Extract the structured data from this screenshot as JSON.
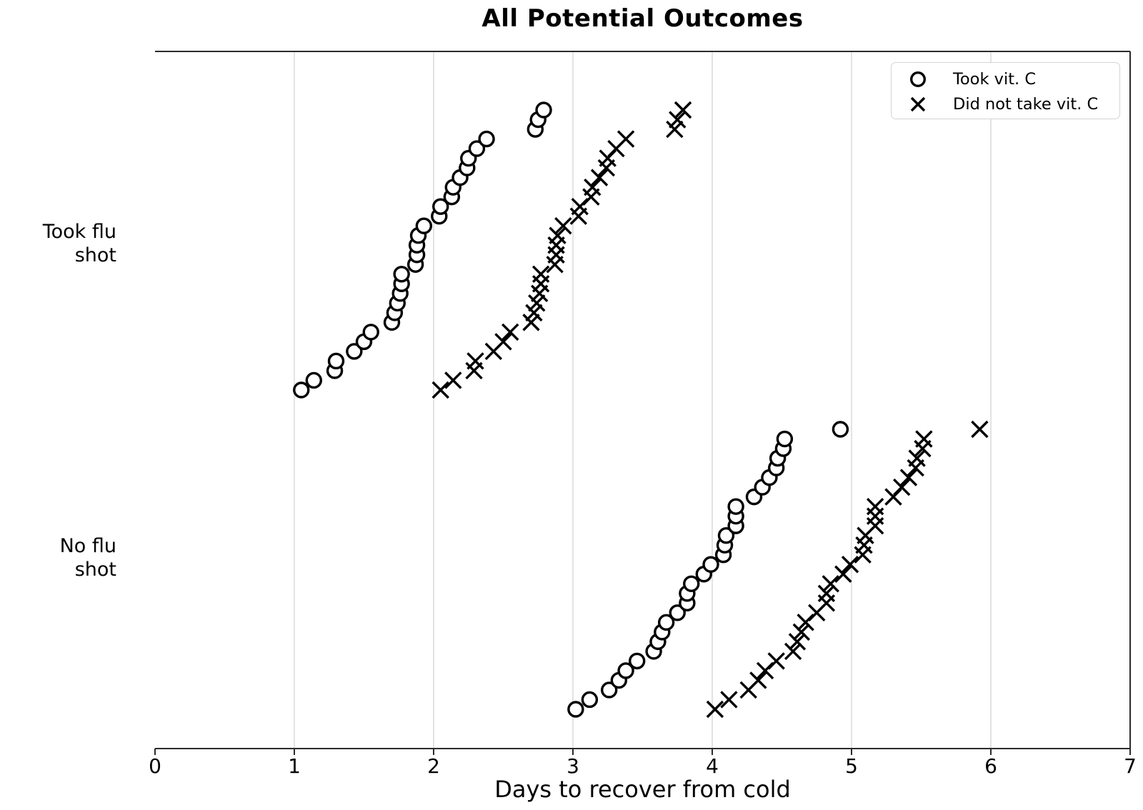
{
  "chart_data": {
    "type": "scatter",
    "title": "All Potential Outcomes",
    "xlabel": "Days to recover from cold",
    "xlim": [
      0,
      7
    ],
    "x_tick_labels": [
      "0",
      "1",
      "2",
      "3",
      "4",
      "5",
      "6",
      "7"
    ],
    "grid": "vertical gridlines at integer days 1-6",
    "legend_position": "upper right",
    "y_categories": [
      {
        "line1": "Took flu",
        "line2": "shot"
      },
      {
        "line1": "No flu",
        "line2": "shot"
      }
    ],
    "legend": {
      "items": [
        {
          "marker": "circle",
          "label": "Took vit. C"
        },
        {
          "marker": "x",
          "label": "Did not take vit. C"
        }
      ]
    },
    "series": [
      {
        "group": "Took flu shot",
        "row": 0,
        "condition": "Took vit. C",
        "marker": "circle",
        "values": [
          1.05,
          1.14,
          1.29,
          1.3,
          1.43,
          1.5,
          1.55,
          1.7,
          1.72,
          1.74,
          1.76,
          1.77,
          1.77,
          1.87,
          1.88,
          1.88,
          1.89,
          1.93,
          2.04,
          2.05,
          2.13,
          2.14,
          2.19,
          2.24,
          2.25,
          2.31,
          2.38,
          2.73,
          2.75,
          2.79
        ]
      },
      {
        "group": "Took flu shot",
        "row": 0,
        "condition": "Did not take vit. C",
        "marker": "x",
        "values": [
          2.05,
          2.14,
          2.29,
          2.3,
          2.43,
          2.5,
          2.55,
          2.7,
          2.72,
          2.74,
          2.76,
          2.77,
          2.77,
          2.87,
          2.88,
          2.88,
          2.89,
          2.93,
          3.04,
          3.05,
          3.13,
          3.14,
          3.19,
          3.24,
          3.25,
          3.31,
          3.38,
          3.73,
          3.75,
          3.79
        ]
      },
      {
        "group": "No flu shot",
        "row": 1,
        "condition": "Took vit. C",
        "marker": "circle",
        "values": [
          3.02,
          3.12,
          3.26,
          3.33,
          3.38,
          3.46,
          3.58,
          3.61,
          3.64,
          3.67,
          3.75,
          3.82,
          3.82,
          3.85,
          3.94,
          3.99,
          4.08,
          4.09,
          4.1,
          4.17,
          4.17,
          4.17,
          4.3,
          4.36,
          4.41,
          4.46,
          4.47,
          4.51,
          4.52,
          4.92
        ]
      },
      {
        "group": "No flu shot",
        "row": 1,
        "condition": "Did not take vit. C",
        "marker": "x",
        "values": [
          4.02,
          4.12,
          4.26,
          4.33,
          4.38,
          4.46,
          4.58,
          4.61,
          4.64,
          4.67,
          4.75,
          4.82,
          4.82,
          4.85,
          4.94,
          4.99,
          5.08,
          5.09,
          5.1,
          5.17,
          5.17,
          5.17,
          5.3,
          5.36,
          5.41,
          5.46,
          5.47,
          5.51,
          5.52,
          5.92
        ]
      }
    ],
    "colors": {
      "marker": "#000000",
      "grid": "#dcdcdc",
      "spine": "#2b2b2b",
      "legend_border": "#d4d4d4",
      "background": "#ffffff"
    }
  }
}
